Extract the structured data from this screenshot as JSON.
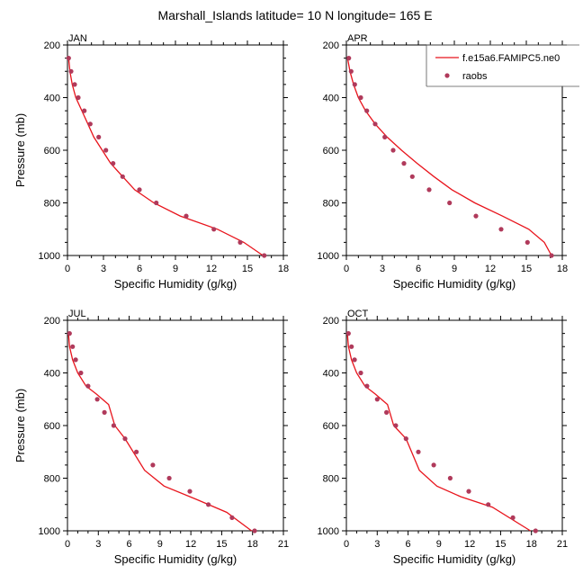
{
  "figure_title": "Marshall_Islands  latitude= 10 N longitude= 165 E",
  "legend": {
    "model_label": "f.e15a6.FAMIPC5.ne0",
    "obs_label": "raobs"
  },
  "colors": {
    "model_line": "#e8141c",
    "obs_marker": "#b03a5b",
    "axis": "#000000"
  },
  "chart_data": [
    {
      "type": "line",
      "panel_title": "JAN",
      "xlabel": "Specific Humidity (g/kg)",
      "ylabel": "Pressure (mb)",
      "xlim": [
        0,
        18
      ],
      "ylim": [
        1000,
        200
      ],
      "y_inverted": true,
      "x_ticks": [
        0,
        3,
        6,
        9,
        12,
        15,
        18
      ],
      "y_ticks": [
        200,
        400,
        600,
        800,
        1000
      ],
      "legend": false,
      "series": [
        {
          "name": "f.e15a6.FAMIPC5.ne0",
          "kind": "line",
          "x": [
            0.1,
            0.2,
            0.4,
            0.7,
            1.2,
            2.2,
            3.6,
            5.6,
            7.2,
            9.4,
            12.5,
            14.7,
            16.3
          ],
          "y": [
            250,
            300,
            350,
            400,
            450,
            550,
            650,
            750,
            800,
            850,
            900,
            950,
            1000
          ]
        },
        {
          "name": "raobs",
          "kind": "markers",
          "x": [
            0.1,
            0.3,
            0.6,
            0.9,
            1.4,
            1.9,
            2.6,
            3.2,
            3.8,
            4.6,
            6.0,
            7.4,
            9.9,
            12.2,
            14.4,
            16.4
          ],
          "y": [
            250,
            300,
            350,
            400,
            450,
            500,
            550,
            600,
            650,
            700,
            750,
            800,
            850,
            900,
            950,
            1000
          ]
        }
      ]
    },
    {
      "type": "line",
      "panel_title": "APR",
      "xlabel": "Specific Humidity (g/kg)",
      "ylabel": "",
      "xlim": [
        0,
        18
      ],
      "ylim": [
        1000,
        200
      ],
      "y_inverted": true,
      "x_ticks": [
        0,
        3,
        6,
        9,
        12,
        15,
        18
      ],
      "y_ticks": [
        200,
        400,
        600,
        800,
        1000
      ],
      "legend": true,
      "series": [
        {
          "name": "f.e15a6.FAMIPC5.ne0",
          "kind": "line",
          "x": [
            0.1,
            0.3,
            0.6,
            1.0,
            1.6,
            2.4,
            3.4,
            4.6,
            5.9,
            7.3,
            8.8,
            10.7,
            13.0,
            15.2,
            16.5,
            17.1
          ],
          "y": [
            250,
            300,
            350,
            400,
            450,
            500,
            550,
            600,
            650,
            700,
            750,
            800,
            850,
            900,
            950,
            1000
          ]
        },
        {
          "name": "raobs",
          "kind": "markers",
          "x": [
            0.2,
            0.4,
            0.7,
            1.2,
            1.7,
            2.4,
            3.2,
            3.9,
            4.8,
            5.5,
            6.9,
            8.6,
            10.8,
            12.9,
            15.1,
            17.1
          ],
          "y": [
            250,
            300,
            350,
            400,
            450,
            500,
            550,
            600,
            650,
            700,
            750,
            800,
            850,
            900,
            950,
            1000
          ]
        }
      ]
    },
    {
      "type": "line",
      "panel_title": "JUL",
      "xlabel": "Specific Humidity (g/kg)",
      "ylabel": "Pressure (mb)",
      "xlim": [
        0,
        21
      ],
      "ylim": [
        1000,
        200
      ],
      "y_inverted": true,
      "x_ticks": [
        0,
        3,
        6,
        9,
        12,
        15,
        18,
        21
      ],
      "y_ticks": [
        200,
        400,
        600,
        800,
        1000
      ],
      "legend": false,
      "series": [
        {
          "name": "f.e15a6.FAMIPC5.ne0",
          "kind": "line",
          "x": [
            0.1,
            0.2,
            0.5,
            1.0,
            1.8,
            2.8,
            4.0,
            4.6,
            5.6,
            7.5,
            9.4,
            12.5,
            15.5,
            17.9
          ],
          "y": [
            250,
            300,
            350,
            400,
            450,
            480,
            520,
            600,
            650,
            770,
            830,
            880,
            930,
            1000
          ]
        },
        {
          "name": "raobs",
          "kind": "markers",
          "x": [
            0.2,
            0.5,
            0.8,
            1.3,
            2.0,
            2.9,
            3.6,
            4.5,
            5.6,
            6.7,
            8.3,
            9.9,
            11.9,
            13.7,
            16.0,
            18.2
          ],
          "y": [
            250,
            300,
            350,
            400,
            450,
            500,
            550,
            600,
            650,
            700,
            750,
            800,
            850,
            900,
            950,
            1000
          ]
        }
      ]
    },
    {
      "type": "line",
      "panel_title": "OCT",
      "xlabel": "Specific Humidity (g/kg)",
      "ylabel": "",
      "xlim": [
        0,
        21
      ],
      "ylim": [
        1000,
        200
      ],
      "y_inverted": true,
      "x_ticks": [
        0,
        3,
        6,
        9,
        12,
        15,
        18,
        21
      ],
      "y_ticks": [
        200,
        400,
        600,
        800,
        1000
      ],
      "legend": false,
      "series": [
        {
          "name": "f.e15a6.FAMIPC5.ne0",
          "kind": "line",
          "x": [
            0.1,
            0.2,
            0.5,
            1.0,
            1.8,
            2.8,
            4.0,
            4.6,
            5.8,
            7.1,
            8.8,
            11.1,
            14.2,
            17.9
          ],
          "y": [
            250,
            300,
            350,
            400,
            450,
            480,
            520,
            600,
            650,
            770,
            830,
            870,
            910,
            1000
          ]
        },
        {
          "name": "raobs",
          "kind": "markers",
          "x": [
            0.2,
            0.5,
            0.8,
            1.4,
            2.0,
            3.0,
            3.9,
            4.8,
            5.8,
            7.0,
            8.5,
            10.1,
            11.9,
            13.8,
            16.2,
            18.4
          ],
          "y": [
            250,
            300,
            350,
            400,
            450,
            500,
            550,
            600,
            650,
            700,
            750,
            800,
            850,
            900,
            950,
            1000
          ]
        }
      ]
    }
  ]
}
